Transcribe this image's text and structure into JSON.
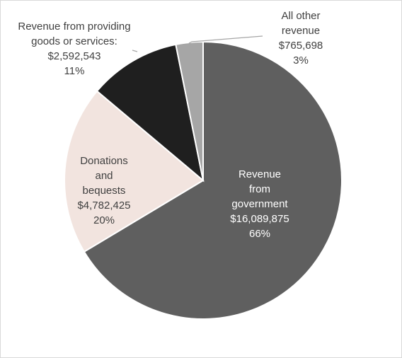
{
  "chart_data": {
    "type": "pie",
    "title": "",
    "slices": [
      {
        "label_lines": [
          "Revenue",
          "from",
          "government"
        ],
        "value": 16089875,
        "value_label": "$16,089,875",
        "percent_label": "66%",
        "color": "#5f5f5f",
        "label_color": "#ffffff"
      },
      {
        "label_lines": [
          "Donations",
          "and",
          "bequests"
        ],
        "value": 4782425,
        "value_label": "$4,782,425",
        "percent_label": "20%",
        "color": "#f2e4df",
        "label_color": "#404040"
      },
      {
        "label_lines": [
          "Revenue from providing",
          "goods or services:"
        ],
        "value": 2592543,
        "value_label": "$2,592,543",
        "percent_label": "11%",
        "color": "#1f1f1f",
        "label_color": "#404040"
      },
      {
        "label_lines": [
          "All other",
          "revenue"
        ],
        "value": 765698,
        "value_label": "$765,698",
        "percent_label": "3%",
        "color": "#a6a6a6",
        "label_color": "#404040"
      }
    ],
    "start_angle": "12 o'clock",
    "direction": "clockwise",
    "slice_border": "#ffffff",
    "leader_line_color": "#a6a6a6"
  }
}
